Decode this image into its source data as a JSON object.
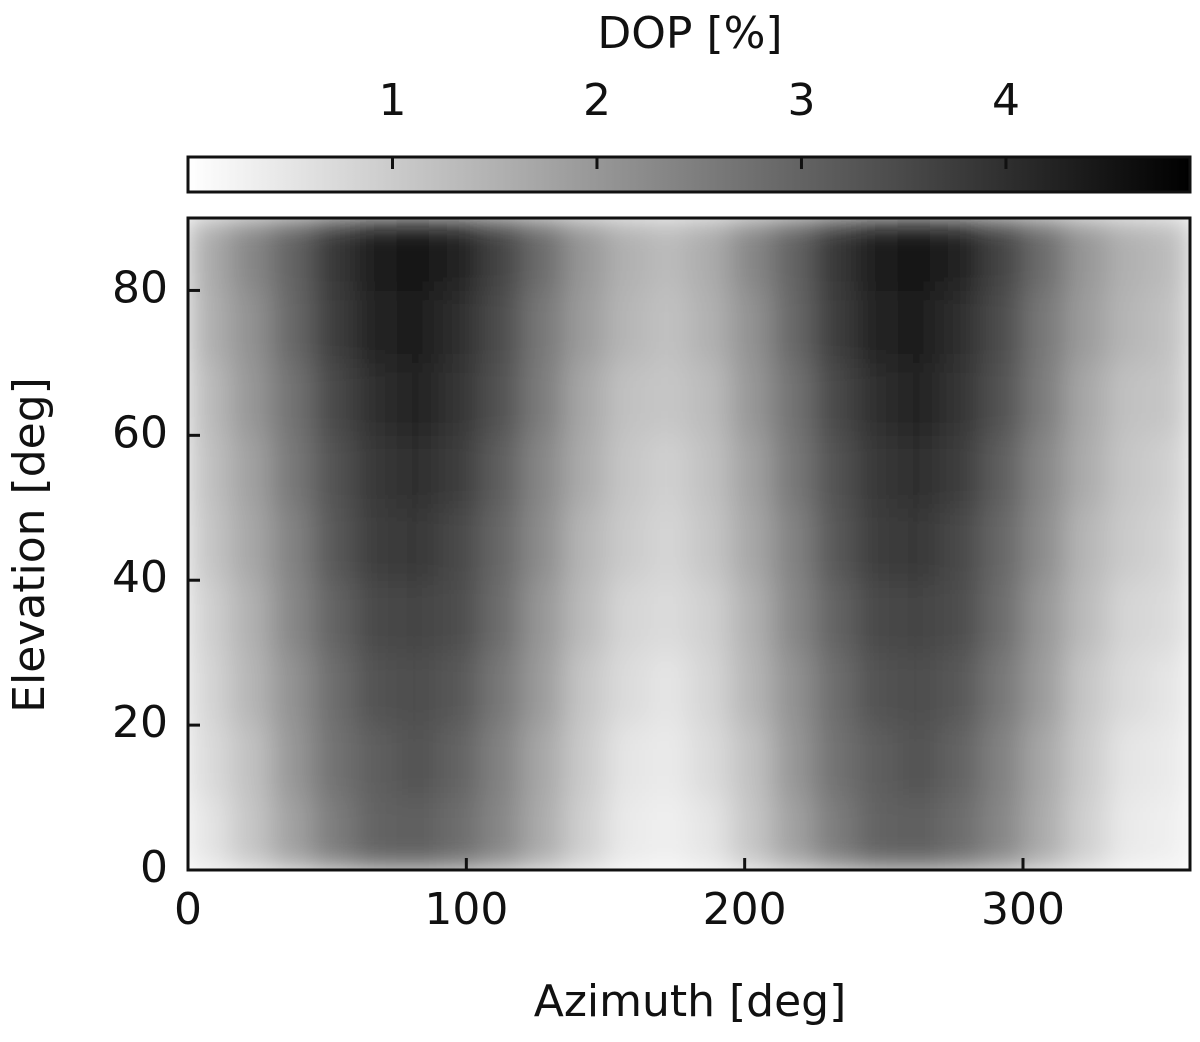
{
  "chart_data": {
    "type": "heatmap",
    "colorbar_label": "DOP [%]",
    "x_label": "Azimuth [deg]",
    "y_label": "Elevation [deg]",
    "colormap": "gray_r",
    "clim": [
      0,
      4.9
    ],
    "cticks": [
      1,
      2,
      3,
      4
    ],
    "xlim": [
      0,
      360
    ],
    "xticks": [
      0,
      100,
      200,
      300
    ],
    "ylim": [
      0,
      90
    ],
    "yticks": [
      0,
      20,
      40,
      60,
      80
    ],
    "x": [
      7.5,
      22.5,
      37.5,
      52.5,
      67.5,
      82.5,
      97.5,
      112.5,
      127.5,
      142.5,
      157.5,
      172.5,
      187.5,
      202.5,
      217.5,
      232.5,
      247.5,
      262.5,
      277.5,
      292.5,
      307.5,
      322.5,
      337.5,
      352.5
    ],
    "y": [
      5,
      15,
      25,
      35,
      45,
      55,
      65,
      75,
      85
    ],
    "values": [
      [
        0.5,
        1.1,
        1.8,
        2.5,
        3.0,
        3.1,
        2.8,
        2.3,
        1.6,
        0.9,
        0.4,
        0.3,
        0.5,
        1.1,
        1.8,
        2.5,
        3.0,
        3.1,
        2.8,
        2.3,
        1.6,
        0.9,
        0.4,
        0.3
      ],
      [
        0.7,
        1.2,
        2.0,
        2.7,
        3.1,
        3.3,
        3.0,
        2.4,
        1.7,
        1.0,
        0.5,
        0.4,
        0.7,
        1.2,
        2.0,
        2.7,
        3.1,
        3.3,
        3.0,
        2.4,
        1.7,
        1.0,
        0.5,
        0.4
      ],
      [
        0.8,
        1.4,
        2.1,
        2.8,
        3.3,
        3.4,
        3.2,
        2.6,
        1.9,
        1.1,
        0.7,
        0.5,
        0.8,
        1.4,
        2.1,
        2.8,
        3.3,
        3.4,
        3.2,
        2.6,
        1.9,
        1.1,
        0.7,
        0.5
      ],
      [
        0.9,
        1.5,
        2.3,
        3.0,
        3.5,
        3.6,
        3.4,
        2.8,
        2.0,
        1.3,
        0.8,
        0.7,
        0.9,
        1.5,
        2.3,
        3.0,
        3.5,
        3.6,
        3.4,
        2.8,
        2.0,
        1.3,
        0.8,
        0.7
      ],
      [
        1.1,
        1.7,
        2.4,
        3.2,
        3.7,
        3.8,
        3.5,
        2.9,
        2.2,
        1.4,
        1.0,
        0.8,
        1.1,
        1.7,
        2.4,
        3.2,
        3.7,
        3.8,
        3.5,
        2.9,
        2.2,
        1.4,
        1.0,
        0.8
      ],
      [
        1.2,
        1.8,
        2.6,
        3.3,
        3.8,
        4.0,
        3.7,
        3.1,
        2.3,
        1.6,
        1.1,
        0.9,
        1.2,
        1.8,
        2.6,
        3.3,
        3.8,
        4.0,
        3.7,
        3.1,
        2.3,
        1.6,
        1.1,
        0.9
      ],
      [
        1.3,
        2.0,
        2.7,
        3.5,
        4.0,
        4.2,
        3.9,
        3.3,
        2.5,
        1.7,
        1.2,
        1.1,
        1.3,
        2.0,
        2.7,
        3.5,
        4.0,
        4.2,
        3.9,
        3.3,
        2.5,
        1.7,
        1.2,
        1.1
      ],
      [
        1.5,
        2.1,
        2.9,
        3.7,
        4.2,
        4.3,
        4.0,
        3.4,
        2.6,
        1.9,
        1.4,
        1.2,
        1.5,
        2.1,
        2.9,
        3.7,
        4.2,
        4.3,
        4.0,
        3.4,
        2.6,
        1.9,
        1.4,
        1.2
      ],
      [
        1.6,
        2.3,
        3.0,
        3.8,
        4.4,
        4.5,
        4.2,
        3.6,
        2.8,
        2.0,
        1.5,
        1.3,
        1.6,
        2.3,
        3.0,
        3.8,
        4.4,
        4.5,
        4.2,
        3.6,
        2.8,
        2.0,
        1.5,
        1.3
      ]
    ]
  }
}
